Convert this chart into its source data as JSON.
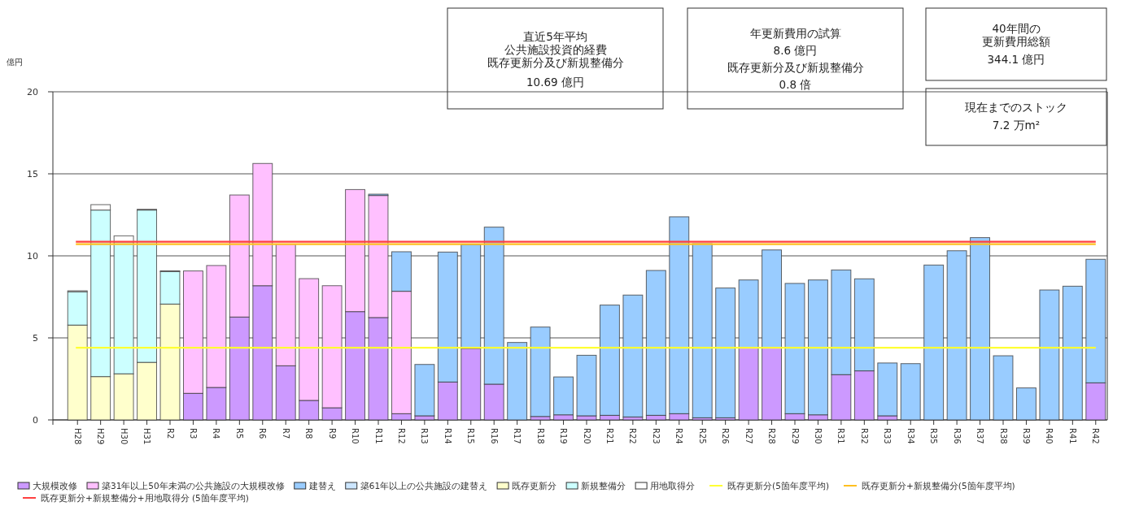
{
  "chart_data": {
    "type": "bar",
    "stacked": true,
    "ylabel": "億円",
    "ylim": [
      0,
      20
    ],
    "yticks": [
      0,
      5,
      10,
      15,
      20
    ],
    "grid": "y",
    "legend": "bottom",
    "categories": [
      "H28",
      "H29",
      "H30",
      "H31",
      "R2",
      "R3",
      "R4",
      "R5",
      "R6",
      "R7",
      "R8",
      "R9",
      "R10",
      "R11",
      "R12",
      "R13",
      "R14",
      "R15",
      "R16",
      "R17",
      "R18",
      "R19",
      "R20",
      "R21",
      "R22",
      "R23",
      "R24",
      "R25",
      "R26",
      "R27",
      "R28",
      "R29",
      "R30",
      "R31",
      "R32",
      "R33",
      "R34",
      "R35",
      "R36",
      "R37",
      "R38",
      "R39",
      "R40",
      "R41",
      "R42"
    ],
    "series": [
      {
        "name": "大規模改修",
        "color": "#cc99ff",
        "values": [
          0,
          0,
          0,
          0,
          0,
          1.62,
          1.98,
          6.27,
          8.18,
          3.3,
          1.19,
          0.74,
          6.6,
          6.24,
          0.38,
          0.25,
          2.31,
          4.36,
          2.18,
          0,
          0.21,
          0.31,
          0.25,
          0.28,
          0.18,
          0.28,
          0.38,
          0.13,
          0.13,
          4.42,
          4.42,
          0.38,
          0.31,
          2.76,
          2.99,
          0.25,
          0,
          0,
          0,
          0,
          0,
          0,
          0,
          0,
          2.26
        ]
      },
      {
        "name": "築31年以上50年未満の公共施設の大規模改修",
        "color": "#ffc0ff",
        "values": [
          0,
          0,
          0,
          0,
          0,
          7.46,
          7.43,
          7.44,
          7.45,
          7.41,
          7.42,
          7.44,
          7.44,
          7.44,
          7.46,
          0,
          0,
          0,
          0,
          0,
          0,
          0,
          0,
          0,
          0,
          0,
          0,
          0,
          0,
          0,
          0,
          0,
          0,
          0,
          0,
          0,
          0,
          0,
          0,
          0,
          0,
          0,
          0,
          0,
          0
        ]
      },
      {
        "name": "建替え",
        "color": "#99ccff",
        "values": [
          0,
          0,
          0,
          0,
          0,
          0,
          0,
          0,
          0,
          0,
          0,
          0,
          0,
          0.08,
          2.41,
          3.13,
          7.92,
          6.33,
          9.57,
          4.72,
          5.45,
          2.31,
          3.69,
          6.72,
          7.43,
          8.83,
          12.0,
          10.61,
          7.91,
          4.11,
          5.94,
          7.94,
          8.22,
          6.38,
          5.61,
          3.22,
          3.43,
          9.44,
          10.31,
          11.11,
          3.91,
          1.95,
          7.92,
          8.15,
          7.53
        ]
      },
      {
        "name": "築61年以上の公共施設の建替え",
        "color": "#cce6ff",
        "values": [
          0,
          0,
          0,
          0,
          0,
          0,
          0,
          0,
          0,
          0,
          0,
          0,
          0,
          0,
          0,
          0,
          0,
          0,
          0,
          0,
          0,
          0,
          0,
          0,
          0,
          0,
          0,
          0,
          0,
          0,
          0,
          0,
          0,
          0,
          0,
          0,
          0,
          0,
          0,
          0,
          0,
          0,
          0,
          0,
          0
        ]
      },
      {
        "name": "既存更新分",
        "color": "#ffffcc",
        "values": [
          5.78,
          2.64,
          2.81,
          3.51,
          7.06,
          0,
          0,
          0,
          0,
          0,
          0,
          0,
          0,
          0,
          0,
          0,
          0,
          0,
          0,
          0,
          0,
          0,
          0,
          0,
          0,
          0,
          0,
          0,
          0,
          0,
          0,
          0,
          0,
          0,
          0,
          0,
          0,
          0,
          0,
          0,
          0,
          0,
          0,
          0,
          0
        ]
      },
      {
        "name": "新規整備分",
        "color": "#ccffff",
        "values": [
          2.03,
          10.15,
          8.05,
          9.28,
          1.98,
          0,
          0,
          0,
          0,
          0,
          0,
          0,
          0,
          0,
          0,
          0,
          0,
          0,
          0,
          0,
          0,
          0,
          0,
          0,
          0,
          0,
          0,
          0,
          0,
          0,
          0,
          0,
          0,
          0,
          0,
          0,
          0,
          0,
          0,
          0,
          0,
          0,
          0,
          0,
          0
        ]
      },
      {
        "name": "用地取得分",
        "color": "#ffffff",
        "values": [
          0.06,
          0.33,
          0.36,
          0.05,
          0.05,
          0,
          0,
          0,
          0,
          0,
          0,
          0,
          0,
          0,
          0,
          0,
          0,
          0,
          0,
          0,
          0,
          0,
          0,
          0,
          0,
          0,
          0,
          0,
          0,
          0,
          0,
          0,
          0,
          0,
          0,
          0,
          0,
          0,
          0,
          0,
          0,
          0,
          0,
          0,
          0
        ]
      }
    ],
    "ref_lines": [
      {
        "axis": "y",
        "value": 4.4,
        "label": "既存更新分(5箇年度平均)",
        "color": "#ffff33"
      },
      {
        "axis": "y",
        "value": 10.71,
        "label": "既存更新分+新規整備分(5箇年度平均)",
        "color": "#ffc020"
      },
      {
        "axis": "y",
        "value": 10.86,
        "label": "既存更新分+新規整備分+用地取得分 (5箇年度平均)",
        "color": "#ff4040"
      }
    ],
    "annotations": [
      "直近5年平均",
      "公共施設投資的経費",
      "既存更新分及び新規整備分",
      "10.69 億円",
      "年更新費用の試算",
      "8.6 億円",
      "既存更新分及び新規整備分",
      "0.8 倍",
      "40年間の",
      "更新費用総額",
      "344.1 億円",
      "現在までのストック",
      "7.2 万m²"
    ]
  }
}
